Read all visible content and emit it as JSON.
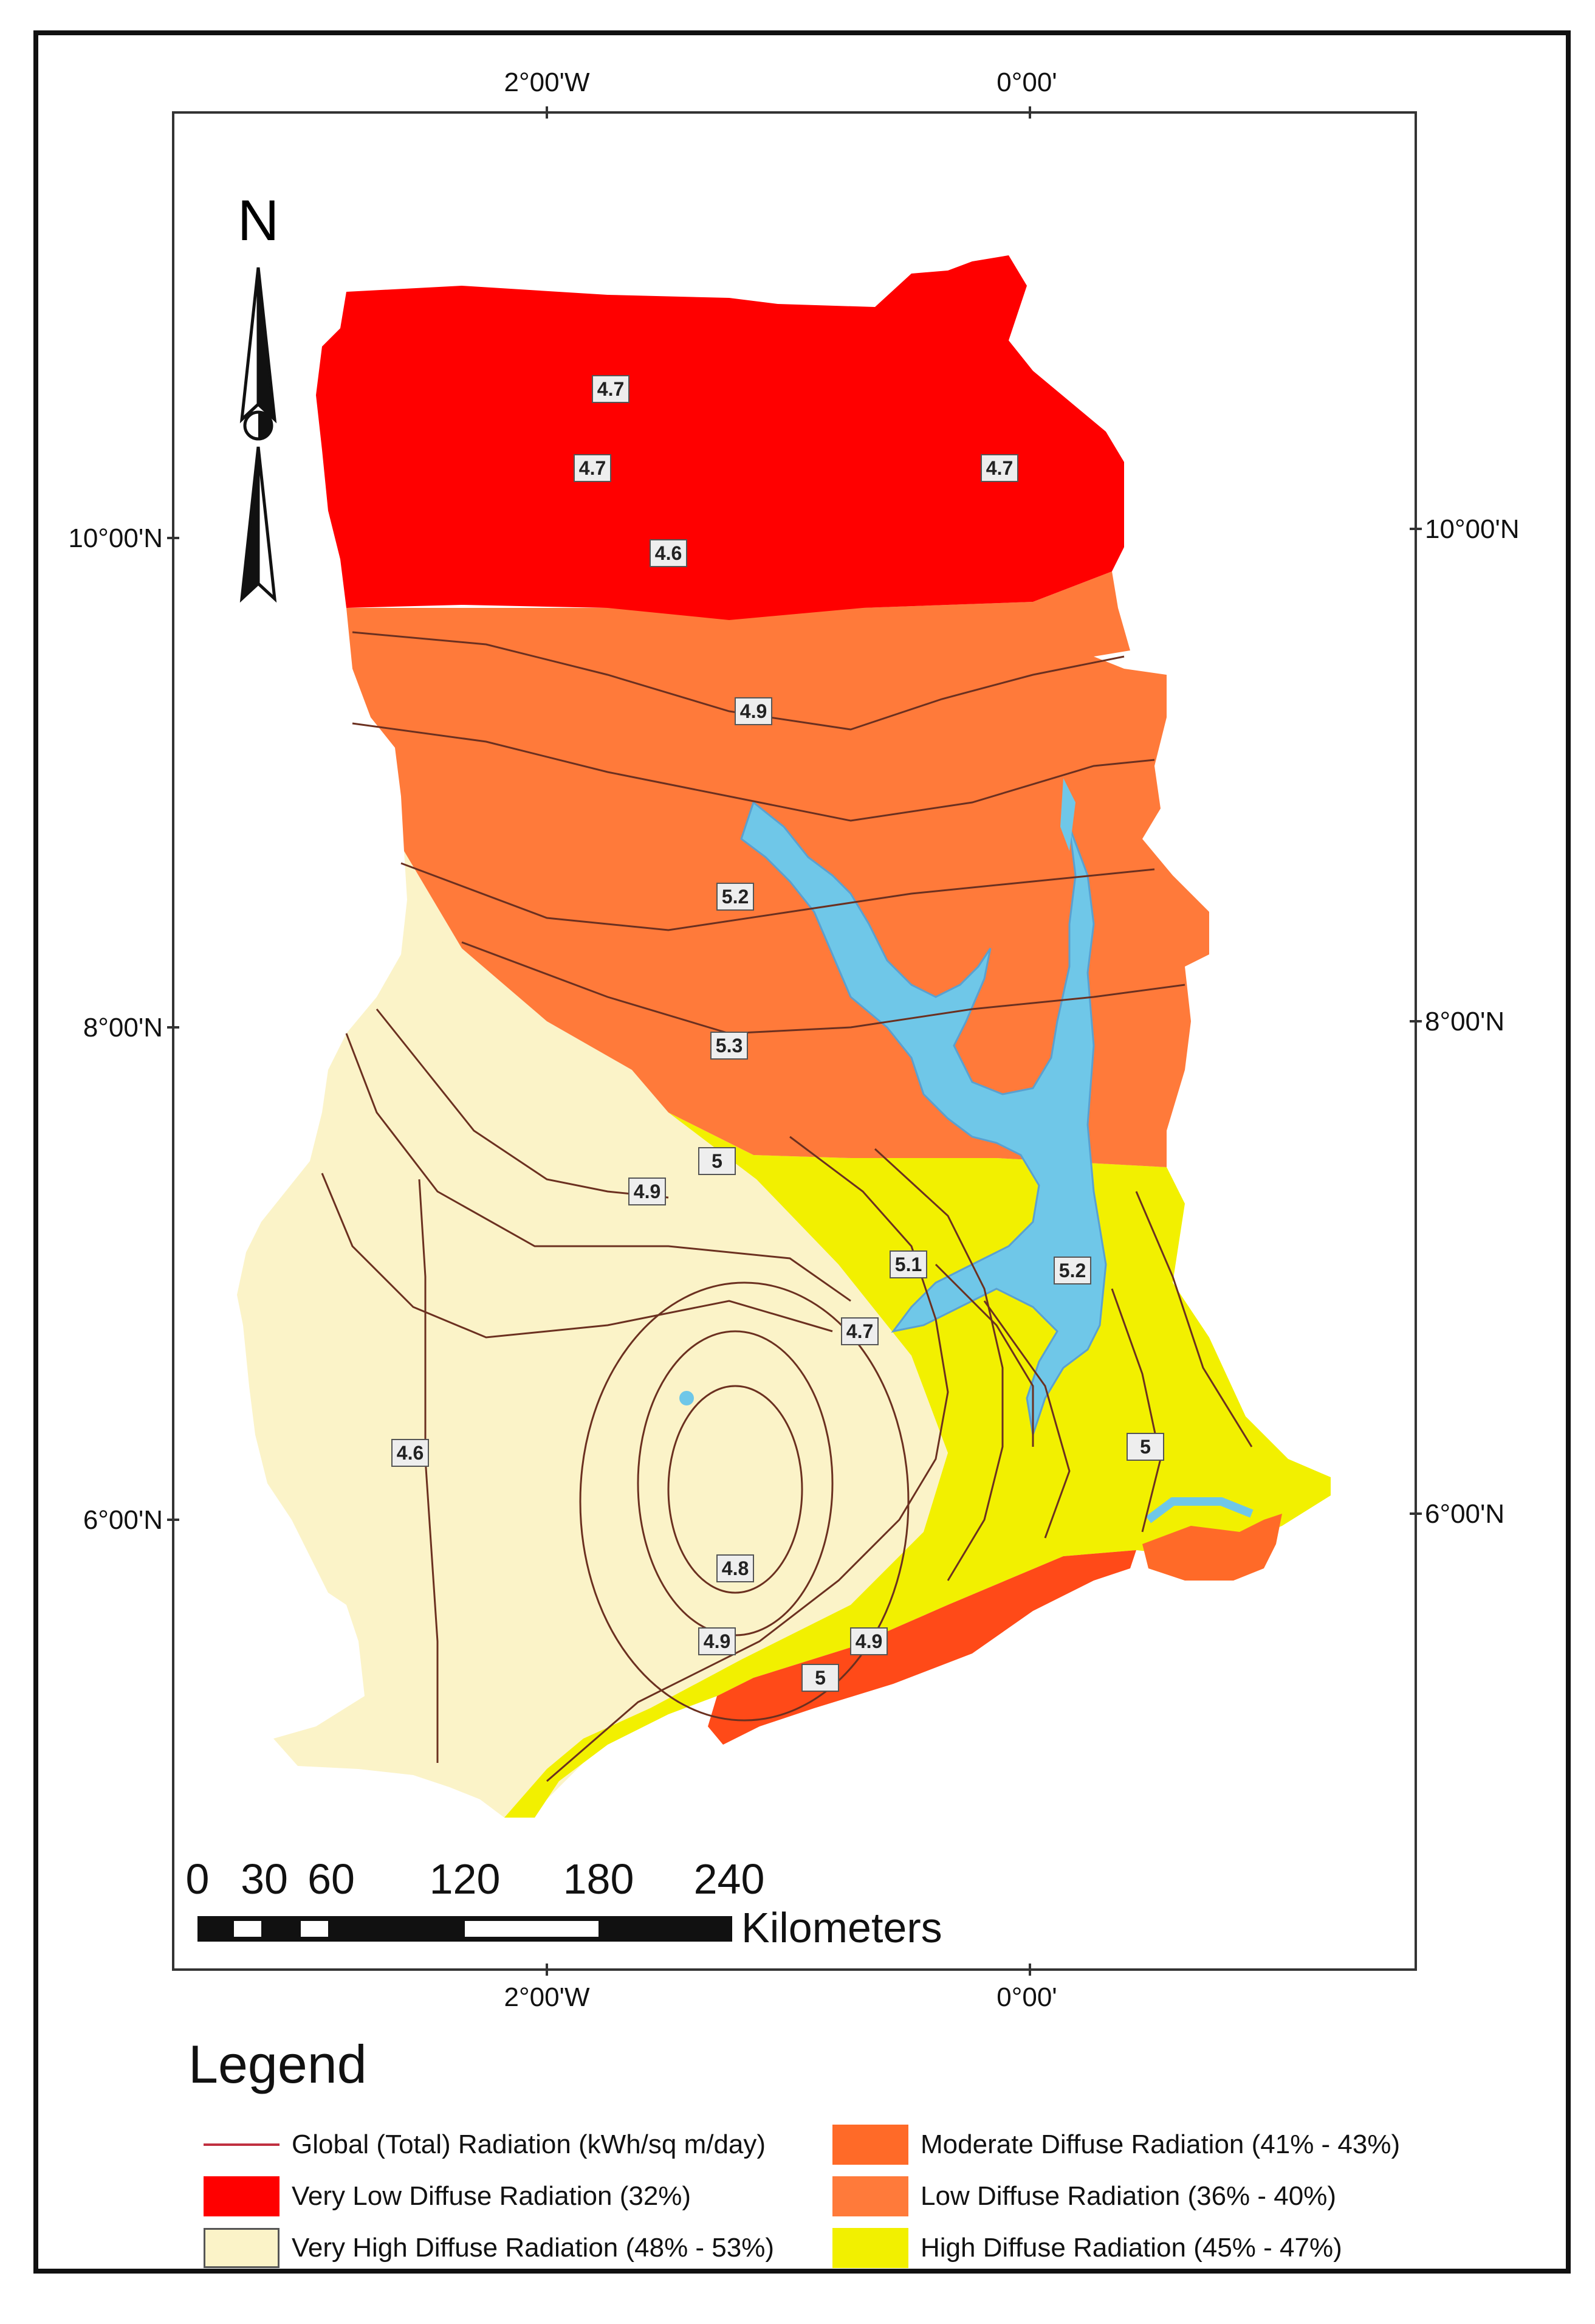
{
  "map": {
    "north_label": "N",
    "lon_labels_top": [
      "2°00'W",
      "0°00'"
    ],
    "lon_labels_bottom": [
      "2°00'W",
      "0°00'"
    ],
    "lat_labels_left": [
      "10°00'N",
      "8°00'N",
      "6°00'N"
    ],
    "lat_labels_right": [
      "10°00'N",
      "8°00'N",
      "6°00'N"
    ],
    "contour_labels": [
      "4.7",
      "4.7",
      "4.7",
      "4.6",
      "4.9",
      "5.2",
      "5.3",
      "5",
      "4.9",
      "4.6",
      "5.1",
      "5.2",
      "4.7",
      "5",
      "4.8",
      "4.9",
      "4.9",
      "5"
    ],
    "scale_bar": {
      "ticks": [
        "0",
        "30",
        "60",
        "120",
        "180",
        "240"
      ],
      "unit": "Kilometers"
    },
    "zone_colors": {
      "very_low": "#ff0000",
      "moderate": "#ff6a28",
      "low": "#ff7a3a",
      "high": "#f2f000",
      "very_high": "#fbf3c8",
      "water": "#6fc7e8"
    }
  },
  "legend": {
    "title": "Legend",
    "items": [
      {
        "label": "Global (Total) Radiation (kWh/sq m/day)",
        "type": "line",
        "color": "#c03040"
      },
      {
        "label": "Very Low Diffuse Radiation (32%)",
        "type": "swatch",
        "color": "#ff0000"
      },
      {
        "label": "Very High Diffuse Radiation (48% - 53%)",
        "type": "swatch",
        "color": "#fbf3c8"
      },
      {
        "label": "Moderate Diffuse Radiation (41% - 43%)",
        "type": "swatch",
        "color": "#ff6a28"
      },
      {
        "label": "Low Diffuse Radiation (36% - 40%)",
        "type": "swatch",
        "color": "#ff7a3a"
      },
      {
        "label": "High Diffuse Radiation (45% - 47%)",
        "type": "swatch",
        "color": "#f2f000"
      }
    ]
  }
}
